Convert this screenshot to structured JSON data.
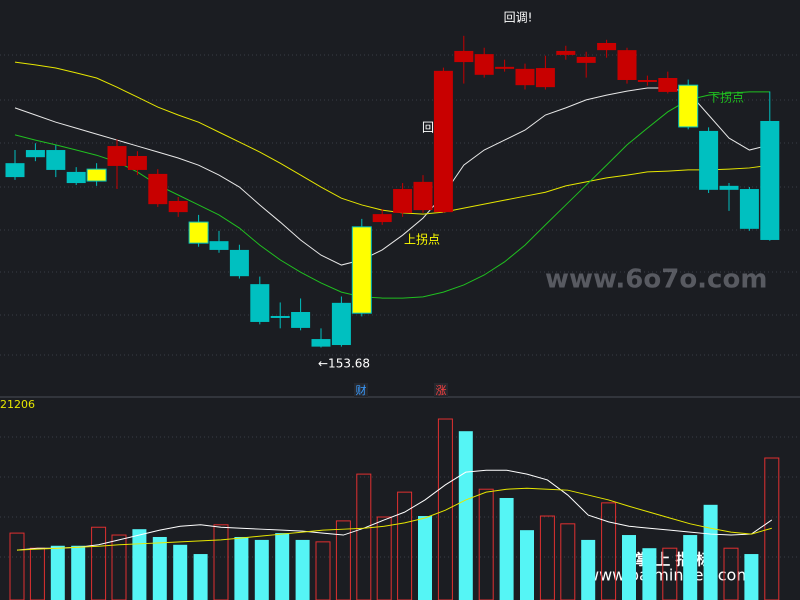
{
  "chart_data": {
    "type": "candlestick",
    "ylim": [
      143,
      241
    ],
    "open": [
      200.0,
      203.3,
      203.3,
      197.8,
      195.5,
      199.3,
      198.3,
      189.7,
      187.7,
      185.2,
      180.4,
      178.2,
      169.6,
      161.6,
      162.6,
      155.8,
      164.9,
      162.3,
      185.2,
      187.5,
      188.2,
      187.7,
      225.4,
      222.2,
      223.7,
      219.6,
      219.1,
      227.2,
      225.2,
      228.4,
      220.9,
      220.4,
      217.9,
      219.6,
      208.1,
      194.3,
      193.5,
      210.6
    ],
    "close": [
      196.5,
      201.5,
      198.3,
      195.0,
      198.5,
      204.3,
      201.8,
      197.3,
      190.5,
      179.9,
      178.2,
      171.6,
      160.1,
      161.1,
      158.6,
      153.9,
      154.3,
      184.0,
      187.2,
      193.5,
      195.3,
      223.2,
      228.2,
      227.4,
      224.2,
      223.7,
      223.9,
      228.2,
      226.7,
      230.2,
      228.4,
      220.9,
      221.4,
      209.1,
      193.3,
      193.3,
      183.5,
      180.7
    ],
    "high": [
      203.3,
      205.0,
      204.5,
      199.0,
      200.0,
      206.0,
      203.0,
      198.5,
      191.5,
      187.0,
      183.0,
      179.5,
      171.5,
      165.0,
      166.0,
      158.5,
      166.5,
      186.0,
      188.5,
      195.0,
      197.0,
      224.0,
      232.0,
      229.0,
      226.0,
      225.0,
      227.0,
      229.5,
      228.0,
      231.0,
      229.0,
      222.0,
      223.0,
      221.0,
      209.0,
      195.0,
      194.0,
      218.0
    ],
    "low": [
      195.8,
      200.5,
      196.5,
      194.5,
      194.3,
      193.5,
      197.0,
      189.0,
      186.5,
      179.0,
      177.5,
      171.0,
      159.5,
      158.5,
      158.0,
      153.68,
      153.9,
      161.5,
      184.5,
      186.5,
      187.5,
      187.5,
      220.0,
      221.5,
      223.0,
      218.5,
      218.5,
      226.0,
      221.5,
      226.5,
      220.0,
      219.5,
      217.5,
      208.5,
      192.5,
      188.0,
      183.0,
      180.5
    ],
    "colors": [
      "#00c0c0",
      "#00c0c0",
      "#00c0c0",
      "#00c0c0",
      "#ffff00",
      "#c80000",
      "#c80000",
      "#c80000",
      "#c80000",
      "#ffff00",
      "#00c0c0",
      "#00c0c0",
      "#00c0c0",
      "#00c0c0",
      "#00c0c0",
      "#00c0c0",
      "#00c0c0",
      "#ffff00",
      "#c80000",
      "#c80000",
      "#c80000",
      "#c80000",
      "#c80000",
      "#c80000",
      "#c80000",
      "#c80000",
      "#c80000",
      "#c80000",
      "#c80000",
      "#c80000",
      "#c80000",
      "#c80000",
      "#c80000",
      "#ffff00",
      "#00c0c0",
      "#00c0c0",
      "#00c0c0",
      "#00c0c0"
    ],
    "ma": [
      {
        "color": "#e8e8e8",
        "values": [
          213.9,
          212.1,
          210.3,
          208.8,
          207.3,
          205.8,
          204.3,
          202.8,
          201.3,
          199.5,
          197.0,
          194.0,
          189.5,
          185.2,
          180.7,
          176.9,
          174.4,
          175.7,
          178.2,
          181.9,
          186.2,
          192.0,
          199.5,
          203.3,
          205.8,
          208.3,
          212.1,
          213.9,
          215.9,
          217.1,
          218.1,
          218.9,
          218.9,
          217.9,
          212.1,
          206.3,
          203.3,
          204.6
        ]
      },
      {
        "color": "#e6e600",
        "values": [
          225.4,
          224.7,
          223.9,
          222.7,
          221.4,
          219.1,
          216.6,
          214.1,
          212.1,
          210.3,
          207.8,
          205.3,
          202.8,
          200.0,
          197.0,
          194.0,
          191.2,
          189.5,
          188.2,
          187.5,
          187.2,
          187.7,
          188.7,
          189.7,
          190.7,
          191.7,
          192.7,
          194.3,
          195.3,
          196.3,
          197.0,
          197.8,
          198.0,
          198.3,
          198.3,
          198.5,
          198.8,
          199.5
        ]
      },
      {
        "color": "#20c020",
        "values": [
          207.1,
          205.8,
          204.6,
          203.3,
          202.0,
          200.3,
          197.8,
          194.5,
          192.0,
          189.5,
          187.0,
          183.7,
          179.4,
          175.7,
          172.6,
          169.9,
          167.6,
          166.4,
          166.1,
          166.1,
          166.4,
          167.6,
          169.4,
          171.9,
          175.2,
          179.4,
          184.5,
          189.5,
          194.5,
          199.5,
          204.6,
          208.8,
          212.9,
          215.9,
          217.1,
          217.6,
          217.9,
          217.9
        ]
      }
    ],
    "annotations": [
      {
        "text": "回调!",
        "color": "#ffffff"
      },
      {
        "text": "回",
        "color": "#ffffff"
      },
      {
        "text": "上拐点",
        "color": "#ffff00"
      },
      {
        "text": "下拐点",
        "color": "#20c020"
      },
      {
        "text": "←153.68",
        "color": "#ffffff"
      }
    ],
    "badges": [
      {
        "text": "财",
        "color": "#3a9cff"
      },
      {
        "text": "涨",
        "color": "#ff4040"
      }
    ],
    "volume": {
      "label": "21206",
      "ylim": [
        0,
        40000
      ],
      "values": [
        12700,
        9600,
        10100,
        10100,
        13900,
        12300,
        13500,
        11900,
        10300,
        8400,
        14400,
        11900,
        11300,
        12700,
        11300,
        10900,
        15200,
        24800,
        16000,
        21100,
        16200,
        36100,
        33600,
        21700,
        19900,
        13300,
        16200,
        14600,
        11300,
        18900,
        12300,
        9600,
        9600,
        12300,
        18500,
        9600,
        8400,
        28100
      ],
      "filled": [
        false,
        false,
        true,
        true,
        false,
        false,
        true,
        true,
        true,
        true,
        false,
        true,
        true,
        true,
        true,
        false,
        false,
        false,
        false,
        false,
        true,
        false,
        true,
        false,
        true,
        true,
        false,
        false,
        true,
        false,
        true,
        true,
        false,
        true,
        true,
        false,
        true,
        false
      ],
      "up_color": "#e03030",
      "down_color": "#55f5f5",
      "ma": [
        {
          "color": "#ffffff",
          "values": [
            9200,
            9600,
            9600,
            9800,
            10300,
            11300,
            12300,
            13300,
            14100,
            14400,
            13900,
            13700,
            13500,
            13300,
            13100,
            12700,
            12300,
            13700,
            15400,
            17000,
            19500,
            22600,
            25200,
            25600,
            25600,
            24800,
            23600,
            20500,
            16400,
            15000,
            14100,
            13700,
            13300,
            12900,
            12500,
            12300,
            12500,
            15400
          ]
        },
        {
          "color": "#e6e600",
          "values": [
            9200,
            9400,
            9600,
            9800,
            10000,
            10300,
            10500,
            10700,
            10900,
            11100,
            11300,
            11700,
            12100,
            12500,
            12900,
            13300,
            13500,
            13700,
            14100,
            14800,
            15800,
            17400,
            19500,
            21100,
            21700,
            21900,
            21700,
            21500,
            20500,
            19500,
            18200,
            17000,
            15800,
            14600,
            13700,
            12900,
            12500,
            13700
          ]
        }
      ]
    }
  },
  "watermarks": [
    "www.6o7o.com",
    "掌 上 指 标",
    "www.palmindex.com"
  ]
}
